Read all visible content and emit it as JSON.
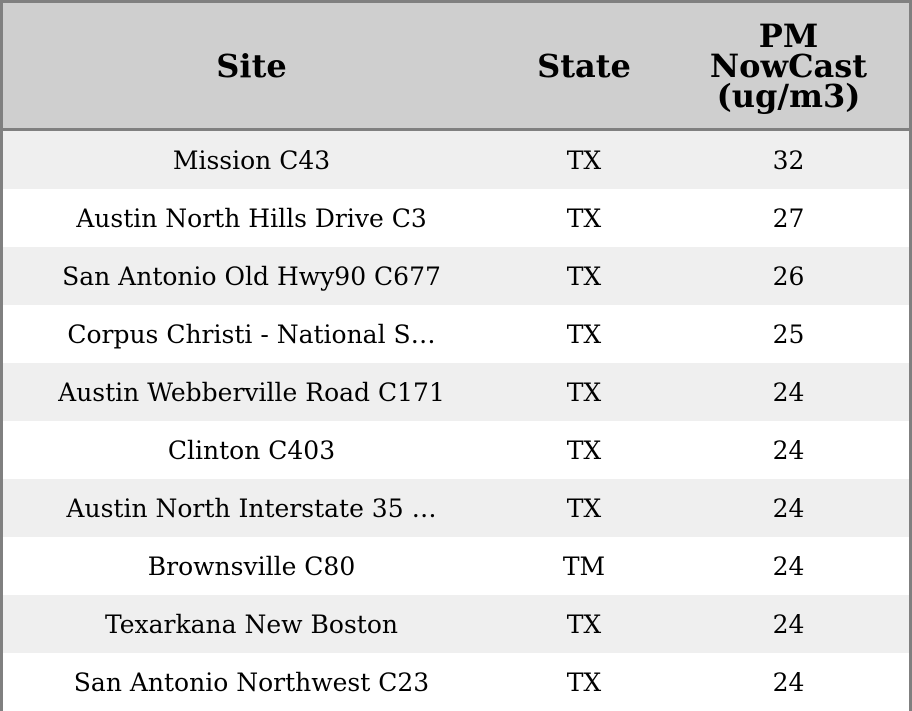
{
  "table": {
    "headers": [
      "Site",
      "State",
      "PM NowCast (ug/m3)"
    ],
    "rows": [
      [
        "Mission C43",
        "TX",
        32
      ],
      [
        "Austin North Hills Drive C3",
        "TX",
        27
      ],
      [
        "San Antonio Old Hwy90 C677",
        "TX",
        26
      ],
      [
        "Corpus Christi - National S…",
        "TX",
        25
      ],
      [
        "Austin Webberville Road C171",
        "TX",
        24
      ],
      [
        "Clinton C403",
        "TX",
        24
      ],
      [
        "Austin North Interstate 35 …",
        "TX",
        24
      ],
      [
        "Brownsville C80",
        "TM",
        24
      ],
      [
        "Texarkana New Boston",
        "TX",
        24
      ],
      [
        "San Antonio Northwest C23",
        "TX",
        24
      ]
    ]
  }
}
